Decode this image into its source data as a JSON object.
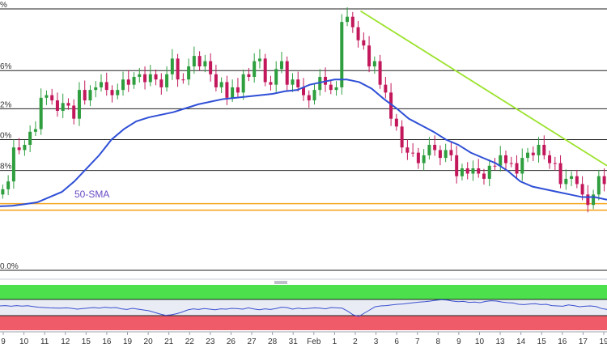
{
  "colors": {
    "background": "#ffffff",
    "up_candle": "#2e9e3e",
    "down_candle": "#c2185b",
    "sma": "#2f4fd6",
    "trendline": "#9be22b",
    "support_zone": "#f5a623",
    "fib_line": "#222222",
    "rsi_overbought": "#4ce04c",
    "rsi_oversold": "#ef5b68",
    "rsi_mid": "#e9ecf4",
    "rsi_line": "#3a4fd0"
  },
  "chart_data": {
    "type": "candlestick",
    "fib_labels": [
      "%",
      "6%",
      "2%",
      "0%",
      "8%",
      "0.0%"
    ],
    "fib_levels": [
      0.0,
      0.236,
      0.382,
      0.5,
      0.618,
      1.0
    ],
    "support_zone": [
      0.745,
      0.77
    ],
    "sma_label": "50-SMA",
    "dates": [
      "9",
      "10",
      "11",
      "12",
      "15",
      "16",
      "19",
      "20",
      "21",
      "22",
      "23",
      "26",
      "27",
      "28",
      "31",
      "Feb",
      "1",
      "2",
      "3",
      "6",
      "7",
      "8",
      "9",
      "10",
      "13",
      "14",
      "15",
      "16",
      "17",
      "19"
    ],
    "closes": [
      0.69,
      0.66,
      0.53,
      0.54,
      0.52,
      0.47,
      0.46,
      0.34,
      0.33,
      0.35,
      0.39,
      0.36,
      0.37,
      0.42,
      0.31,
      0.35,
      0.31,
      0.3,
      0.28,
      0.31,
      0.33,
      0.31,
      0.27,
      0.29,
      0.26,
      0.25,
      0.28,
      0.25,
      0.27,
      0.3,
      0.25,
      0.19,
      0.27,
      0.27,
      0.22,
      0.18,
      0.22,
      0.2,
      0.25,
      0.3,
      0.28,
      0.34,
      0.3,
      0.32,
      0.25,
      0.26,
      0.2,
      0.19,
      0.28,
      0.29,
      0.23,
      0.2,
      0.29,
      0.27,
      0.3,
      0.33,
      0.35,
      0.31,
      0.26,
      0.29,
      0.31,
      0.3,
      0.05,
      0.03,
      0.07,
      0.12,
      0.14,
      0.22,
      0.2,
      0.29,
      0.32,
      0.42,
      0.45,
      0.53,
      0.55,
      0.55,
      0.59,
      0.56,
      0.52,
      0.54,
      0.57,
      0.54,
      0.56,
      0.64,
      0.61,
      0.63,
      0.61,
      0.63,
      0.65,
      0.6,
      0.6,
      0.56,
      0.59,
      0.59,
      0.63,
      0.57,
      0.55,
      0.56,
      0.52,
      0.56,
      0.59,
      0.59,
      0.67,
      0.65,
      0.64,
      0.67,
      0.71,
      0.75,
      0.71,
      0.64,
      0.67
    ],
    "sma50": [
      0.755,
      0.753,
      0.747,
      0.74,
      0.72,
      0.7,
      0.66,
      0.61,
      0.56,
      0.5,
      0.46,
      0.43,
      0.415,
      0.405,
      0.395,
      0.38,
      0.365,
      0.355,
      0.345,
      0.34,
      0.335,
      0.33,
      0.325,
      0.315,
      0.31,
      0.29,
      0.28,
      0.27,
      0.27,
      0.28,
      0.305,
      0.345,
      0.38,
      0.42,
      0.445,
      0.47,
      0.5,
      0.52,
      0.55,
      0.57,
      0.59,
      0.62,
      0.66,
      0.68,
      0.69,
      0.7,
      0.71,
      0.72,
      0.72,
      0.73
    ],
    "trendline": [
      [
        0.594,
        0.008
      ],
      [
        1.0,
        0.6
      ]
    ],
    "rsi": [
      0.6,
      0.62,
      0.58,
      0.62,
      0.59,
      0.61,
      0.56,
      0.52,
      0.5,
      0.48,
      0.47,
      0.46,
      0.48,
      0.45,
      0.4,
      0.44,
      0.47,
      0.5,
      0.46,
      0.52,
      0.48,
      0.5,
      0.42,
      0.38,
      0.45,
      0.4,
      0.35,
      0.3,
      0.2,
      0.1,
      0.02,
      0.05,
      0.12,
      0.22,
      0.35,
      0.42,
      0.38,
      0.44,
      0.4,
      0.36,
      0.42,
      0.4,
      0.45,
      0.43,
      0.4,
      0.48,
      0.41,
      0.36,
      0.42,
      0.38,
      0.44,
      0.52,
      0.5,
      0.4,
      0.46,
      0.42,
      0.45,
      0.48,
      0.46,
      0.42,
      0.5,
      0.48,
      0.46,
      0.28,
      0.05,
      -0.05,
      0.15,
      0.35,
      0.55,
      0.6,
      0.62,
      0.66,
      0.7,
      0.72,
      0.76,
      0.8,
      0.84,
      0.86,
      0.9,
      0.95,
      0.98,
      0.96,
      0.9,
      0.86,
      0.88,
      0.82,
      0.84,
      0.8,
      0.88,
      0.92,
      0.9,
      0.84,
      0.8,
      0.78,
      0.7,
      0.68,
      0.72,
      0.74,
      0.68,
      0.7,
      0.62,
      0.6,
      0.58,
      0.66,
      0.62,
      0.55,
      0.58,
      0.6,
      0.56,
      0.44,
      0.38
    ]
  }
}
